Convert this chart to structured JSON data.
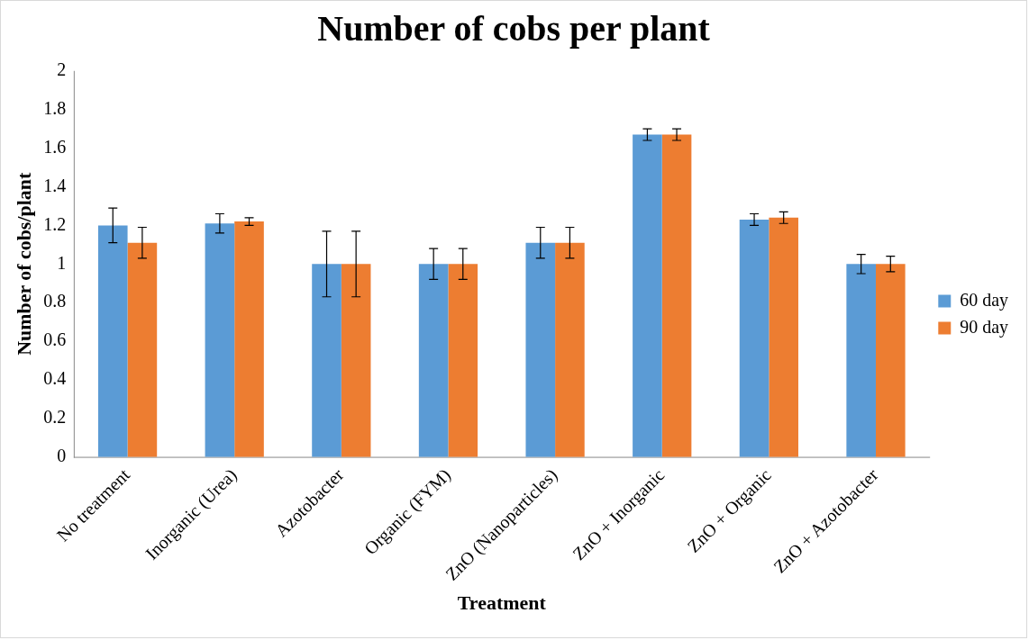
{
  "chart_data": {
    "type": "bar",
    "title": "Number of cobs per plant",
    "xlabel": "Treatment",
    "ylabel": "Number of cobs/plant",
    "categories": [
      "No treatment",
      "Inorganic (Urea)",
      "Azotobacter",
      "Organic (FYM)",
      "ZnO (Nanoparticles)",
      "ZnO + Inorganic",
      "ZnO + Organic",
      "ZnO + Azotobacter"
    ],
    "series": [
      {
        "name": "60 day",
        "color": "#5b9bd5",
        "values": [
          1.2,
          1.21,
          1.0,
          1.0,
          1.11,
          1.67,
          1.23,
          1.0
        ],
        "errors": [
          0.09,
          0.05,
          0.17,
          0.08,
          0.08,
          0.03,
          0.03,
          0.05
        ]
      },
      {
        "name": "90 day",
        "color": "#ed7d31",
        "values": [
          1.11,
          1.22,
          1.0,
          1.0,
          1.11,
          1.67,
          1.24,
          1.0
        ],
        "errors": [
          0.08,
          0.02,
          0.17,
          0.08,
          0.08,
          0.03,
          0.03,
          0.04
        ]
      }
    ],
    "ylim": [
      0,
      2
    ],
    "yticks": [
      0,
      0.2,
      0.4,
      0.6,
      0.8,
      1,
      1.2,
      1.4,
      1.6,
      1.8,
      2
    ],
    "grid": false,
    "legend": "right"
  }
}
